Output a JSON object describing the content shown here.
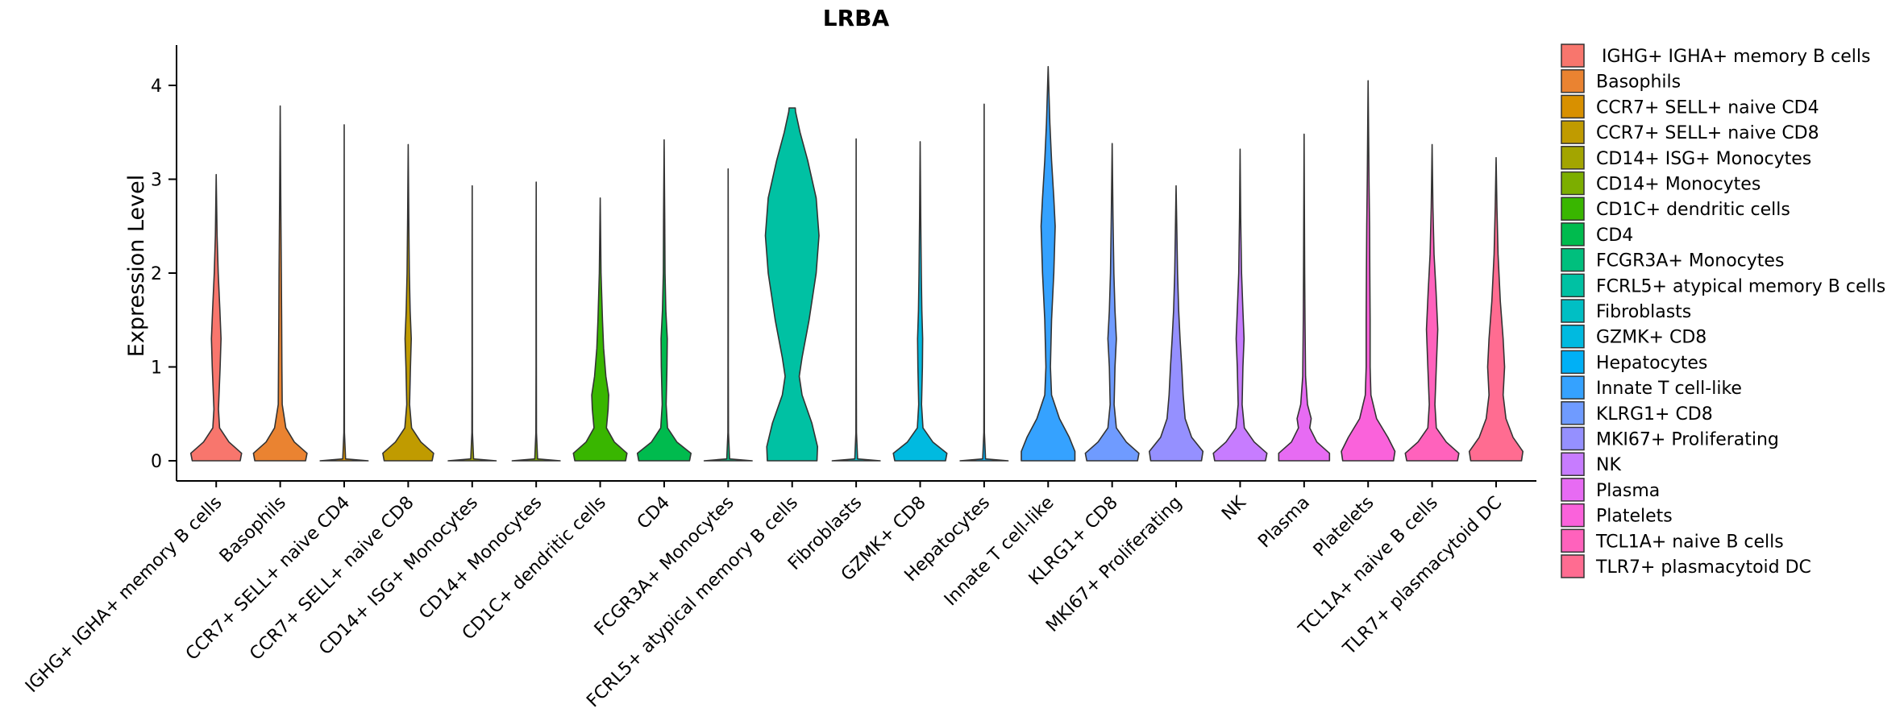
{
  "chart_data": {
    "type": "violin",
    "title": "LRBA",
    "xlabel": "",
    "ylabel": "Expression Level",
    "ylim": [
      -0.2,
      4.42
    ],
    "yticks": [
      0,
      1,
      2,
      3,
      4
    ],
    "grid": false,
    "legend_position": "right",
    "categories": [
      {
        "name": "IGHG+ IGHA+ memory B cells",
        "legend_label": " IGHG+ IGHA+ memory B cells",
        "color": "#F8766D",
        "max": 3.05,
        "profile": [
          [
            0,
            0.85
          ],
          [
            0.08,
            0.9
          ],
          [
            0.2,
            0.45
          ],
          [
            0.35,
            0.12
          ],
          [
            0.55,
            0.08
          ],
          [
            1.0,
            0.14
          ],
          [
            1.3,
            0.17
          ],
          [
            1.6,
            0.13
          ],
          [
            2.0,
            0.07
          ],
          [
            2.4,
            0.03
          ],
          [
            3.05,
            0
          ]
        ]
      },
      {
        "name": "Basophils",
        "legend_label": "Basophils",
        "color": "#EA8331",
        "max": 3.78,
        "profile": [
          [
            0,
            0.9
          ],
          [
            0.08,
            0.95
          ],
          [
            0.2,
            0.5
          ],
          [
            0.35,
            0.2
          ],
          [
            0.6,
            0.07
          ],
          [
            1.0,
            0.06
          ],
          [
            1.5,
            0.05
          ],
          [
            2.0,
            0.04
          ],
          [
            2.8,
            0.02
          ],
          [
            3.78,
            0
          ]
        ]
      },
      {
        "name": "CCR7+ SELL+ naive CD4",
        "legend_label": "CCR7+ SELL+ naive CD4",
        "color": "#D89000",
        "max": 3.58,
        "profile": [
          [
            0,
            0.85
          ],
          [
            0.02,
            0.05
          ],
          [
            0.3,
            0.01
          ],
          [
            1.0,
            0.006
          ],
          [
            2.0,
            0.004
          ],
          [
            3.58,
            0
          ]
        ]
      },
      {
        "name": "CCR7+ SELL+ naive CD8",
        "legend_label": "CCR7+ SELL+ naive CD8",
        "color": "#C09B00",
        "max": 3.37,
        "profile": [
          [
            0,
            0.85
          ],
          [
            0.08,
            0.9
          ],
          [
            0.2,
            0.45
          ],
          [
            0.35,
            0.12
          ],
          [
            0.6,
            0.05
          ],
          [
            1.0,
            0.08
          ],
          [
            1.3,
            0.11
          ],
          [
            1.6,
            0.07
          ],
          [
            2.0,
            0.04
          ],
          [
            2.6,
            0.02
          ],
          [
            3.37,
            0
          ]
        ]
      },
      {
        "name": "CD14+ ISG+ Monocytes",
        "legend_label": "CD14+ ISG+ Monocytes",
        "color": "#A3A500",
        "max": 2.93,
        "profile": [
          [
            0,
            0.85
          ],
          [
            0.02,
            0.05
          ],
          [
            0.3,
            0.01
          ],
          [
            1.0,
            0.006
          ],
          [
            2.0,
            0.004
          ],
          [
            2.93,
            0
          ]
        ]
      },
      {
        "name": "CD14+ Monocytes",
        "legend_label": "CD14+ Monocytes",
        "color": "#7CAE00",
        "max": 2.97,
        "profile": [
          [
            0,
            0.85
          ],
          [
            0.02,
            0.05
          ],
          [
            0.3,
            0.01
          ],
          [
            1.0,
            0.006
          ],
          [
            2.0,
            0.004
          ],
          [
            2.97,
            0
          ]
        ]
      },
      {
        "name": "CD1C+ dendritic cells",
        "legend_label": "CD1C+ dendritic cells",
        "color": "#39B600",
        "max": 2.8,
        "profile": [
          [
            0,
            0.9
          ],
          [
            0.08,
            0.95
          ],
          [
            0.2,
            0.5
          ],
          [
            0.35,
            0.22
          ],
          [
            0.55,
            0.28
          ],
          [
            0.7,
            0.3
          ],
          [
            0.9,
            0.2
          ],
          [
            1.2,
            0.12
          ],
          [
            1.5,
            0.08
          ],
          [
            2.0,
            0.03
          ],
          [
            2.8,
            0
          ]
        ]
      },
      {
        "name": "CD4",
        "legend_label": "CD4",
        "color": "#00BB4E",
        "max": 3.42,
        "profile": [
          [
            0,
            0.9
          ],
          [
            0.08,
            0.95
          ],
          [
            0.2,
            0.45
          ],
          [
            0.35,
            0.12
          ],
          [
            0.6,
            0.07
          ],
          [
            1.0,
            0.1
          ],
          [
            1.3,
            0.11
          ],
          [
            1.6,
            0.06
          ],
          [
            2.0,
            0.03
          ],
          [
            2.6,
            0.02
          ],
          [
            3.42,
            0
          ]
        ]
      },
      {
        "name": "FCGR3A+ Monocytes",
        "legend_label": "FCGR3A+ Monocytes",
        "color": "#00BF7D",
        "max": 3.11,
        "profile": [
          [
            0,
            0.85
          ],
          [
            0.02,
            0.05
          ],
          [
            0.3,
            0.01
          ],
          [
            1.0,
            0.006
          ],
          [
            2.0,
            0.004
          ],
          [
            3.11,
            0
          ]
        ]
      },
      {
        "name": "FCRL5+ atypical memory B cells",
        "legend_label": "FCRL5+ atypical memory B cells",
        "color": "#00C1A3",
        "max": 3.76,
        "profile": [
          [
            0,
            0.88
          ],
          [
            0.15,
            0.9
          ],
          [
            0.4,
            0.7
          ],
          [
            0.7,
            0.35
          ],
          [
            0.9,
            0.25
          ],
          [
            1.1,
            0.35
          ],
          [
            1.5,
            0.6
          ],
          [
            2.0,
            0.85
          ],
          [
            2.4,
            0.95
          ],
          [
            2.8,
            0.85
          ],
          [
            3.2,
            0.55
          ],
          [
            3.5,
            0.28
          ],
          [
            3.72,
            0.12
          ],
          [
            3.76,
            0.11
          ]
        ]
      },
      {
        "name": "Fibroblasts",
        "legend_label": "Fibroblasts",
        "color": "#00BFC4",
        "max": 3.43,
        "profile": [
          [
            0,
            0.85
          ],
          [
            0.02,
            0.05
          ],
          [
            0.3,
            0.01
          ],
          [
            1.0,
            0.006
          ],
          [
            2.0,
            0.004
          ],
          [
            3.43,
            0
          ]
        ]
      },
      {
        "name": "GZMK+ CD8",
        "legend_label": "GZMK+ CD8",
        "color": "#00BAE0",
        "max": 3.4,
        "profile": [
          [
            0,
            0.9
          ],
          [
            0.08,
            0.95
          ],
          [
            0.2,
            0.45
          ],
          [
            0.35,
            0.1
          ],
          [
            0.6,
            0.05
          ],
          [
            1.0,
            0.08
          ],
          [
            1.3,
            0.09
          ],
          [
            1.6,
            0.06
          ],
          [
            2.0,
            0.04
          ],
          [
            2.6,
            0.02
          ],
          [
            3.4,
            0
          ]
        ]
      },
      {
        "name": "Hepatocytes",
        "legend_label": "Hepatocytes",
        "color": "#00B0F6",
        "max": 3.8,
        "profile": [
          [
            0,
            0.85
          ],
          [
            0.02,
            0.05
          ],
          [
            0.3,
            0.01
          ],
          [
            1.0,
            0.006
          ],
          [
            2.0,
            0.004
          ],
          [
            3.8,
            0
          ]
        ]
      },
      {
        "name": "Innate T cell-like",
        "legend_label": "Innate T cell-like",
        "color": "#35A2FF",
        "max": 4.2,
        "profile": [
          [
            0,
            0.95
          ],
          [
            0.1,
            0.95
          ],
          [
            0.25,
            0.75
          ],
          [
            0.45,
            0.4
          ],
          [
            0.7,
            0.12
          ],
          [
            1.0,
            0.08
          ],
          [
            1.5,
            0.12
          ],
          [
            2.0,
            0.2
          ],
          [
            2.5,
            0.25
          ],
          [
            2.8,
            0.2
          ],
          [
            3.2,
            0.12
          ],
          [
            3.6,
            0.06
          ],
          [
            4.2,
            0
          ]
        ]
      },
      {
        "name": "KLRG1+ CD8",
        "legend_label": "KLRG1+ CD8",
        "color": "#6F9BFF",
        "max": 3.38,
        "profile": [
          [
            0,
            0.9
          ],
          [
            0.08,
            0.95
          ],
          [
            0.2,
            0.5
          ],
          [
            0.35,
            0.15
          ],
          [
            0.6,
            0.07
          ],
          [
            1.0,
            0.1
          ],
          [
            1.3,
            0.15
          ],
          [
            1.6,
            0.1
          ],
          [
            2.0,
            0.06
          ],
          [
            2.6,
            0.03
          ],
          [
            3.38,
            0
          ]
        ]
      },
      {
        "name": "MKI67+ Proliferating",
        "legend_label": "MKI67+ Proliferating",
        "color": "#9590FF",
        "max": 2.93,
        "profile": [
          [
            0,
            0.9
          ],
          [
            0.1,
            0.95
          ],
          [
            0.25,
            0.55
          ],
          [
            0.45,
            0.32
          ],
          [
            0.7,
            0.25
          ],
          [
            1.0,
            0.2
          ],
          [
            1.3,
            0.14
          ],
          [
            1.6,
            0.09
          ],
          [
            2.0,
            0.05
          ],
          [
            2.93,
            0
          ]
        ]
      },
      {
        "name": "NK",
        "legend_label": "NK",
        "color": "#C77CFF",
        "max": 3.32,
        "profile": [
          [
            0,
            0.9
          ],
          [
            0.08,
            0.95
          ],
          [
            0.2,
            0.5
          ],
          [
            0.35,
            0.15
          ],
          [
            0.6,
            0.07
          ],
          [
            1.0,
            0.1
          ],
          [
            1.3,
            0.14
          ],
          [
            1.6,
            0.1
          ],
          [
            2.0,
            0.05
          ],
          [
            2.6,
            0.02
          ],
          [
            3.32,
            0
          ]
        ]
      },
      {
        "name": "Plasma",
        "legend_label": "Plasma",
        "color": "#E76BF3",
        "max": 3.48,
        "profile": [
          [
            0,
            0.9
          ],
          [
            0.08,
            0.9
          ],
          [
            0.2,
            0.45
          ],
          [
            0.35,
            0.2
          ],
          [
            0.45,
            0.25
          ],
          [
            0.6,
            0.12
          ],
          [
            0.9,
            0.05
          ],
          [
            1.5,
            0.03
          ],
          [
            2.0,
            0.02
          ],
          [
            3.48,
            0
          ]
        ]
      },
      {
        "name": "Platelets",
        "legend_label": "Platelets",
        "color": "#FA62DB",
        "max": 4.05,
        "profile": [
          [
            0,
            0.9
          ],
          [
            0.1,
            0.95
          ],
          [
            0.25,
            0.7
          ],
          [
            0.45,
            0.3
          ],
          [
            0.7,
            0.1
          ],
          [
            1.0,
            0.07
          ],
          [
            1.5,
            0.07
          ],
          [
            2.0,
            0.06
          ],
          [
            2.5,
            0.05
          ],
          [
            3.0,
            0.03
          ],
          [
            4.05,
            0
          ]
        ]
      },
      {
        "name": "TCL1A+ naive B cells",
        "legend_label": "TCL1A+ naive B cells",
        "color": "#FF62BC",
        "max": 3.37,
        "profile": [
          [
            0,
            0.9
          ],
          [
            0.08,
            0.95
          ],
          [
            0.2,
            0.5
          ],
          [
            0.35,
            0.15
          ],
          [
            0.6,
            0.1
          ],
          [
            1.0,
            0.15
          ],
          [
            1.4,
            0.2
          ],
          [
            1.8,
            0.14
          ],
          [
            2.2,
            0.07
          ],
          [
            2.7,
            0.03
          ],
          [
            3.37,
            0
          ]
        ]
      },
      {
        "name": "TLR7+ plasmacytoid DC",
        "legend_label": "TLR7+ plasmacytoid DC",
        "color": "#FF6C91",
        "max": 3.23,
        "profile": [
          [
            0,
            0.9
          ],
          [
            0.1,
            0.95
          ],
          [
            0.25,
            0.6
          ],
          [
            0.45,
            0.35
          ],
          [
            0.7,
            0.25
          ],
          [
            1.0,
            0.3
          ],
          [
            1.3,
            0.25
          ],
          [
            1.7,
            0.15
          ],
          [
            2.2,
            0.07
          ],
          [
            2.7,
            0.03
          ],
          [
            3.23,
            0
          ]
        ]
      }
    ]
  }
}
